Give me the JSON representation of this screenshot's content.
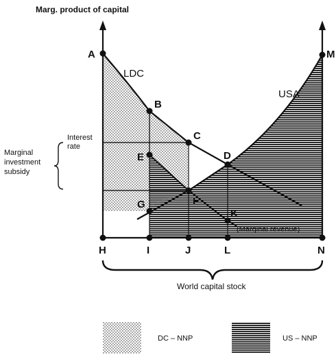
{
  "y_axis_label": "Marg. product of capital",
  "x_axis_label": "World capital stock",
  "curves": {
    "ldc": "LDC",
    "usa": "USA",
    "marginal_revenue": "(Marginal revenue)"
  },
  "side_labels": {
    "interest_rate_line1": "Interest",
    "interest_rate_line2": "rate",
    "subsidy_line1": "Marginal",
    "subsidy_line2": "investment",
    "subsidy_line3": "subsidy"
  },
  "points": {
    "A": "A",
    "M": "M",
    "B": "B",
    "C": "C",
    "D": "D",
    "E": "E",
    "F": "F",
    "G": "G",
    "K": "K"
  },
  "axis_points": {
    "H": "H",
    "I": "I",
    "J": "J",
    "L": "L",
    "N": "N"
  },
  "legend": {
    "dc_nnp": "DC – NNP",
    "us_nnp": "US – NNP"
  }
}
